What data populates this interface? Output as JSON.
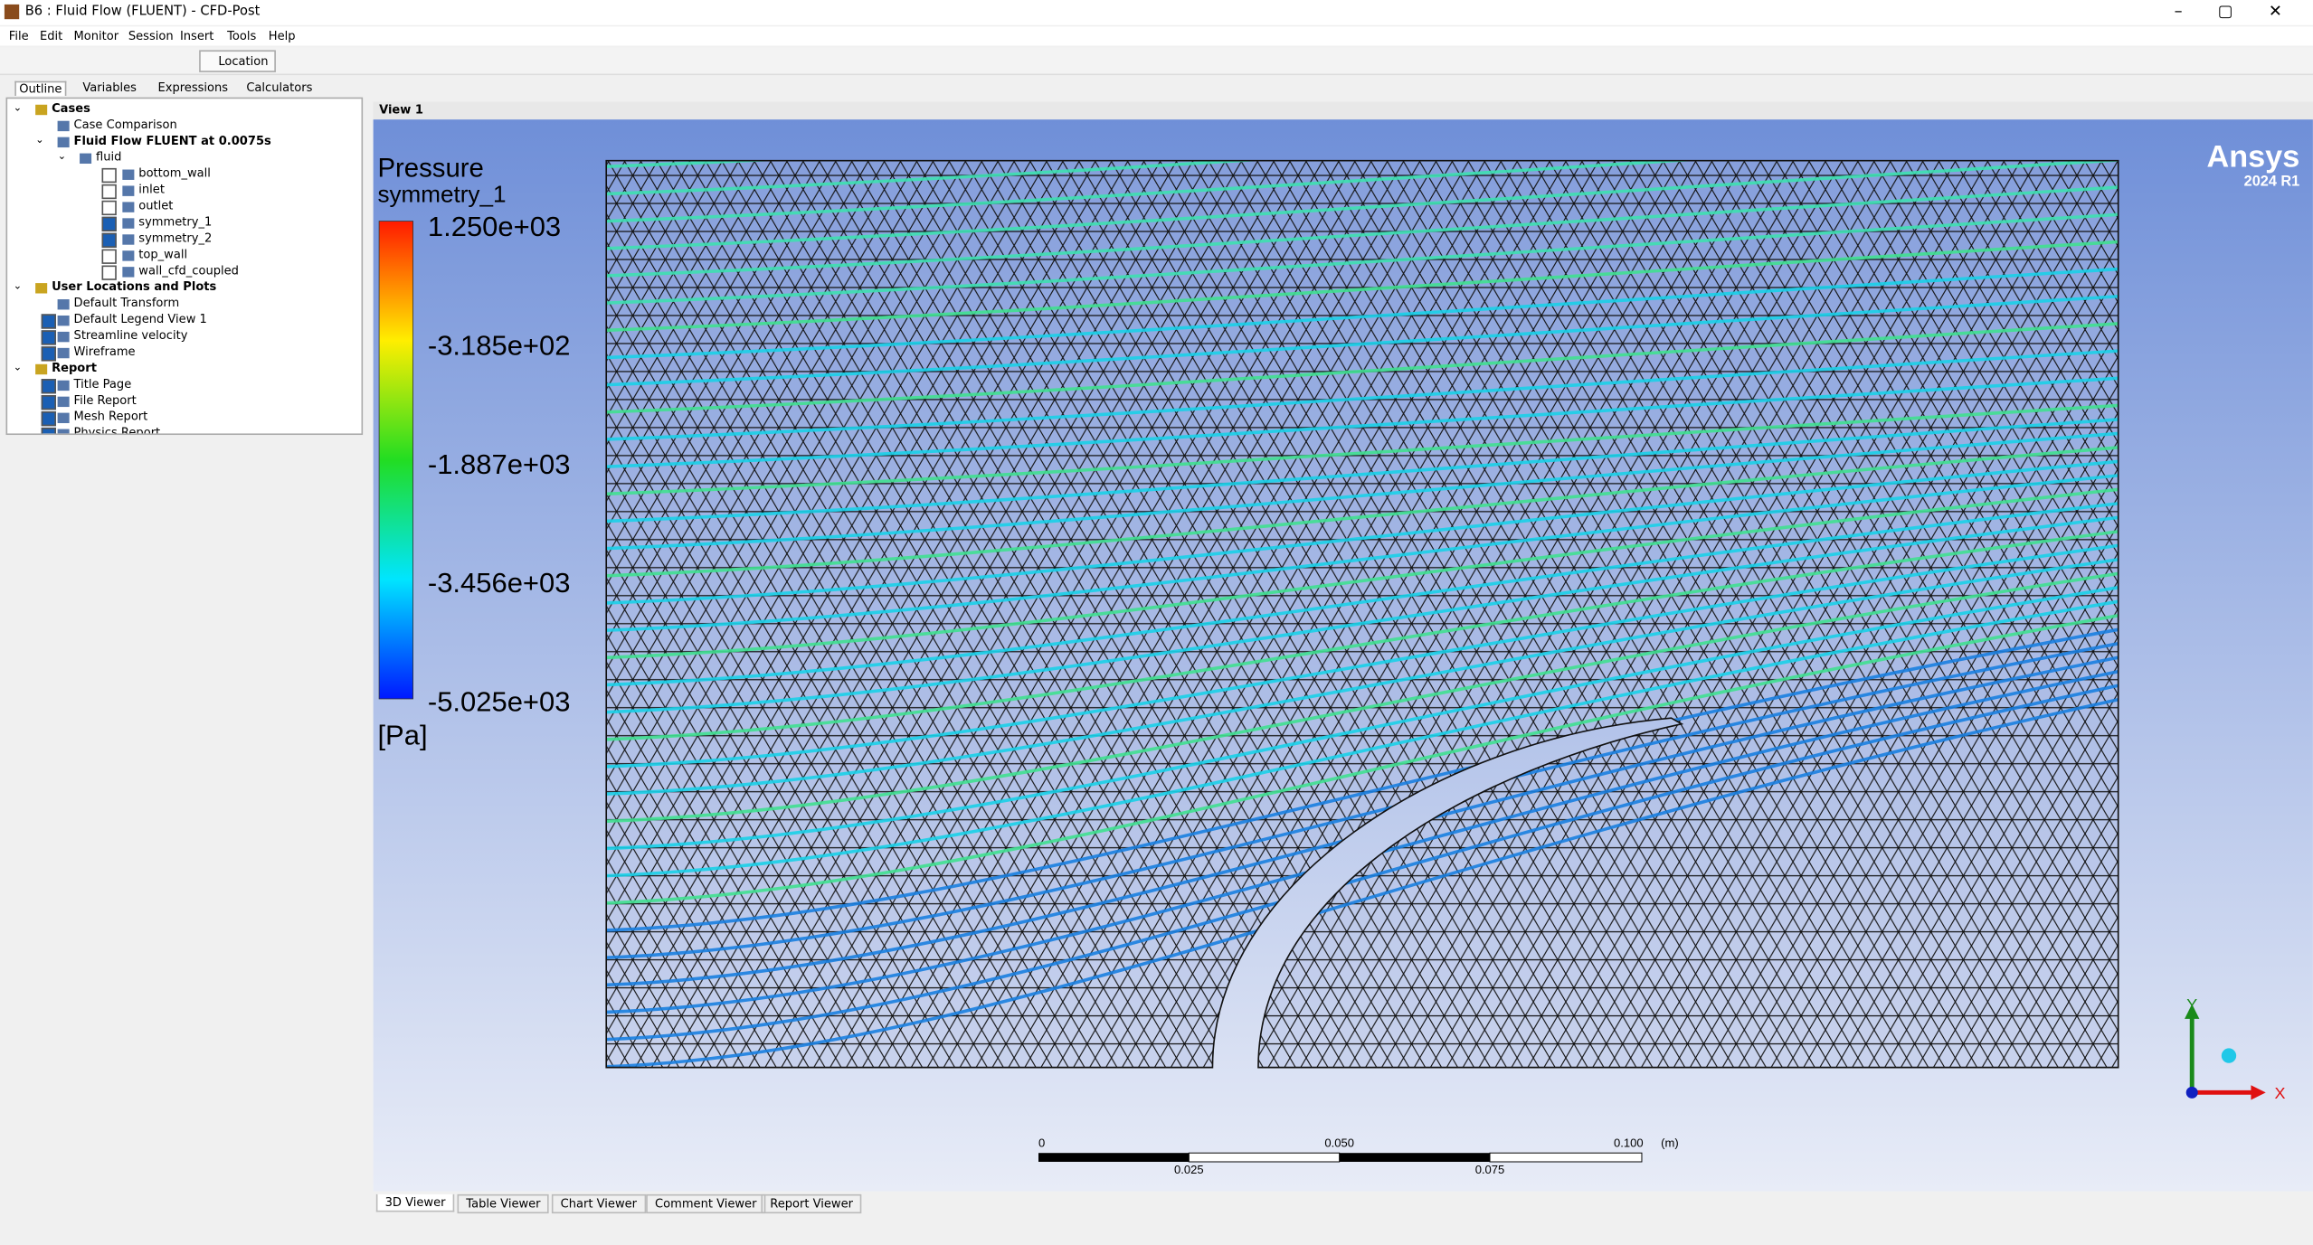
{
  "window": {
    "title": "B6 : Fluid Flow (FLUENT) - CFD-Post",
    "menu": [
      "File",
      "Edit",
      "Monitor",
      "Session",
      "Insert",
      "Tools",
      "Help"
    ],
    "location_button": "Location",
    "panel_tabs": [
      "Outline",
      "Variables",
      "Expressions",
      "Calculators"
    ]
  },
  "tree": [
    {
      "label": "Cases",
      "level": 0,
      "bold": true
    },
    {
      "label": "Case Comparison",
      "level": 1
    },
    {
      "label": "Fluid Flow FLUENT at 0.0075s",
      "level": 1,
      "bold": true
    },
    {
      "label": "fluid",
      "level": 2
    },
    {
      "label": "bottom_wall",
      "level": 3,
      "checked": false
    },
    {
      "label": "inlet",
      "level": 3,
      "checked": false
    },
    {
      "label": "outlet",
      "level": 3,
      "checked": false
    },
    {
      "label": "symmetry_1",
      "level": 3,
      "checked": true
    },
    {
      "label": "symmetry_2",
      "level": 3,
      "checked": true
    },
    {
      "label": "top_wall",
      "level": 3,
      "checked": false
    },
    {
      "label": "wall_cfd_coupled",
      "level": 3,
      "checked": false
    },
    {
      "label": "User Locations and Plots",
      "level": 0,
      "bold": true
    },
    {
      "label": "Default Transform",
      "level": 1
    },
    {
      "label": "Default Legend View 1",
      "level": 1,
      "checked": true
    },
    {
      "label": "Streamline velocity",
      "level": 1,
      "checked": true
    },
    {
      "label": "Wireframe",
      "level": 1,
      "checked": true
    },
    {
      "label": "Report",
      "level": 0,
      "bold": true
    },
    {
      "label": "Title Page",
      "level": 1,
      "checked": true
    },
    {
      "label": "File Report",
      "level": 1,
      "checked": true
    },
    {
      "label": "Mesh Report",
      "level": 1,
      "checked": true
    },
    {
      "label": "Physics Report",
      "level": 1,
      "checked": true
    }
  ],
  "viewer": {
    "view_label": "View 1",
    "legend": {
      "title": "Pressure",
      "subtitle": "symmetry_1",
      "labels": [
        "1.250e+03",
        "-3.185e+02",
        "-1.887e+03",
        "-3.456e+03",
        "-5.025e+03"
      ],
      "unit": "[Pa]"
    },
    "logo": {
      "brand": "Ansys",
      "version": "2024 R1"
    },
    "scale_bar": {
      "top_labels": [
        "0",
        "0.050",
        "0.100",
        "(m)"
      ],
      "bottom_labels": [
        "0.025",
        "0.075"
      ]
    },
    "axes": {
      "y": "Y",
      "x": "X"
    }
  },
  "bottom_tabs": [
    "3D Viewer",
    "Table Viewer",
    "Chart Viewer",
    "Comment Viewer",
    "Report Viewer"
  ]
}
